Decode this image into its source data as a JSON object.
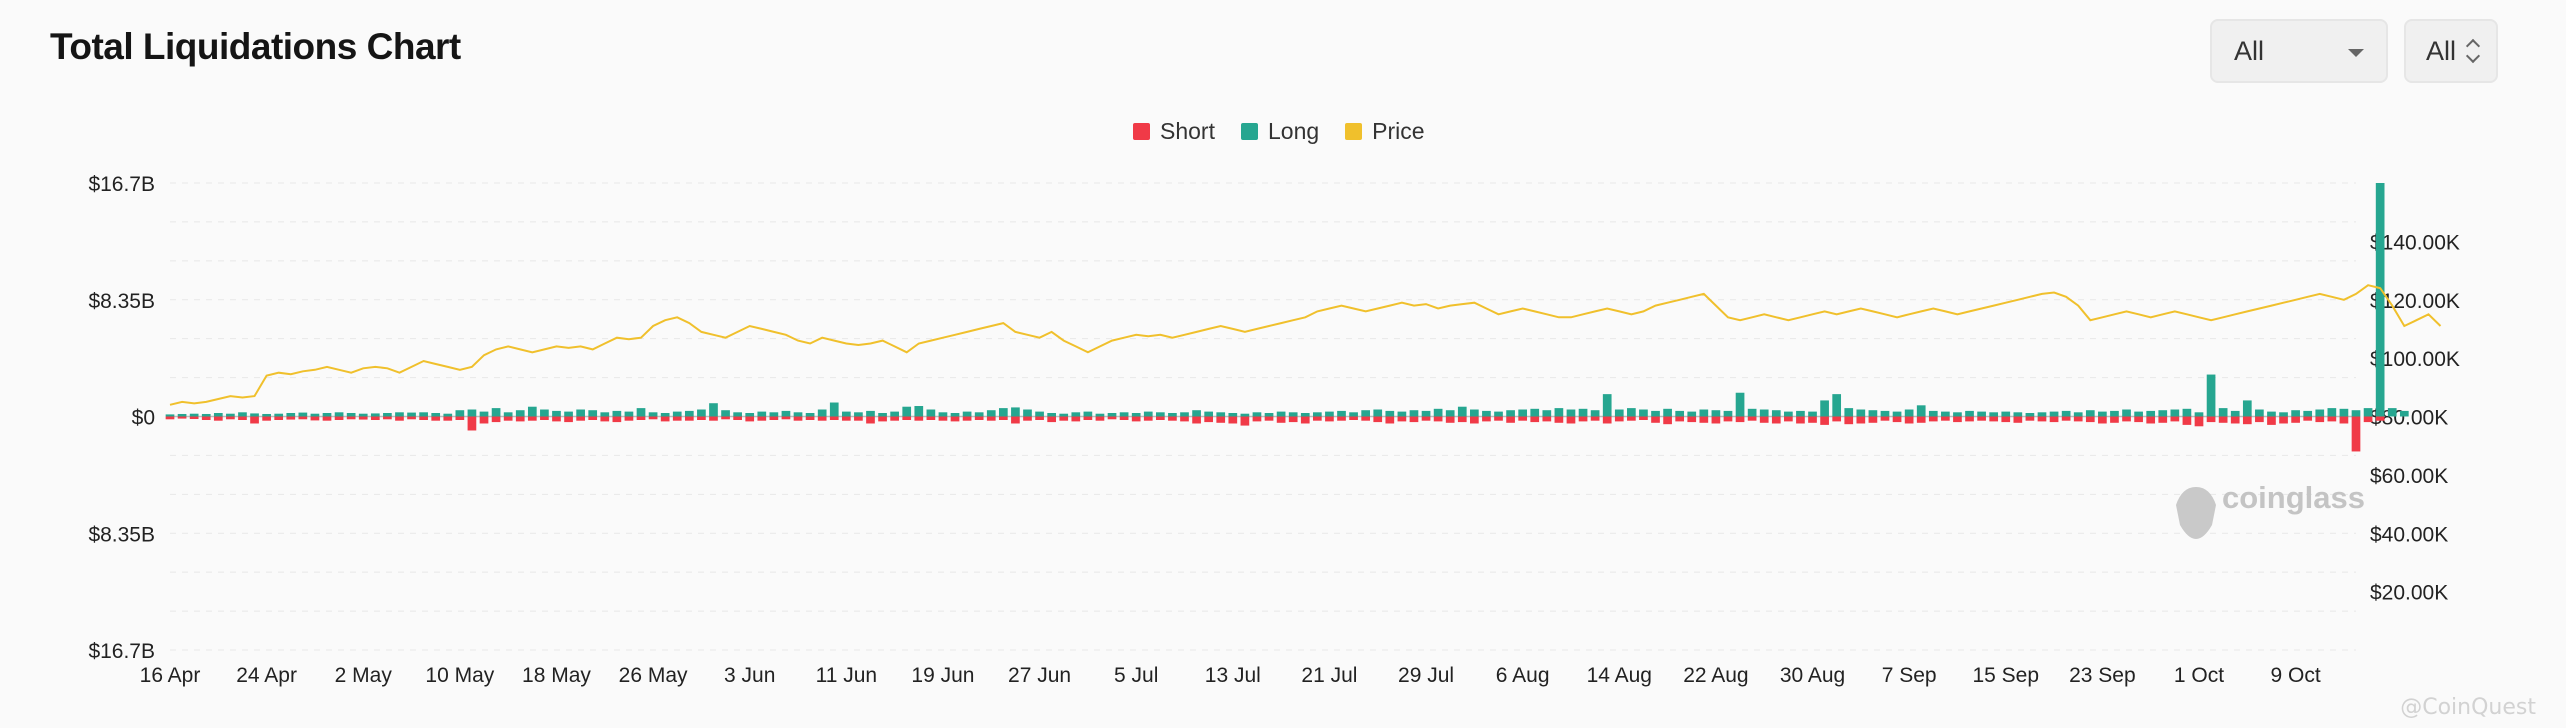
{
  "header": {
    "title": "Total Liquidations Chart",
    "range_select": "All",
    "unit_select": "All"
  },
  "watermark": "coinglass",
  "corner_mark": "@CoinQuest",
  "colors": {
    "short": "#f03a47",
    "long": "#26a690",
    "price": "#f0c02c",
    "grid": "#e8e8e8"
  },
  "chart_data": {
    "type": "bar",
    "title": "Total Liquidations Chart",
    "legend": [
      "Short",
      "Long",
      "Price"
    ],
    "legend_position": "top-center",
    "x_tick_labels": [
      "16 Apr",
      "24 Apr",
      "2 May",
      "10 May",
      "18 May",
      "26 May",
      "3 Jun",
      "11 Jun",
      "19 Jun",
      "27 Jun",
      "5 Jul",
      "13 Jul",
      "21 Jul",
      "29 Jul",
      "6 Aug",
      "14 Aug",
      "22 Aug",
      "30 Aug",
      "7 Sep",
      "15 Sep",
      "23 Sep",
      "1 Oct",
      "9 Oct"
    ],
    "left_axis": {
      "ticks": [
        "$16.7B",
        "$8.35B",
        "$0",
        "$8.35B",
        "$16.7B"
      ],
      "range": [
        -16.7,
        16.7
      ],
      "unit": "B USD"
    },
    "right_axis": {
      "ticks": [
        "$140.00K",
        "$120.00K",
        "$100.00K",
        "$80.00K",
        "$60.00K",
        "$40.00K",
        "$20.00K"
      ],
      "range": [
        0,
        160
      ],
      "unit": "K USD"
    },
    "grid": true,
    "start_date": "16 Apr",
    "day_count": 182,
    "series": [
      {
        "name": "Long",
        "unit": "B USD",
        "values": [
          0.15,
          0.18,
          0.2,
          0.18,
          0.25,
          0.2,
          0.3,
          0.22,
          0.18,
          0.2,
          0.25,
          0.28,
          0.2,
          0.25,
          0.3,
          0.25,
          0.2,
          0.22,
          0.25,
          0.3,
          0.28,
          0.3,
          0.25,
          0.2,
          0.45,
          0.5,
          0.35,
          0.6,
          0.3,
          0.45,
          0.7,
          0.5,
          0.4,
          0.35,
          0.5,
          0.45,
          0.3,
          0.4,
          0.35,
          0.6,
          0.3,
          0.25,
          0.35,
          0.4,
          0.5,
          0.95,
          0.45,
          0.3,
          0.25,
          0.35,
          0.3,
          0.4,
          0.3,
          0.25,
          0.5,
          1.0,
          0.35,
          0.3,
          0.4,
          0.25,
          0.35,
          0.7,
          0.75,
          0.5,
          0.3,
          0.25,
          0.35,
          0.3,
          0.45,
          0.6,
          0.65,
          0.5,
          0.35,
          0.25,
          0.2,
          0.3,
          0.35,
          0.2,
          0.25,
          0.3,
          0.25,
          0.35,
          0.3,
          0.25,
          0.3,
          0.45,
          0.35,
          0.3,
          0.25,
          0.2,
          0.3,
          0.25,
          0.35,
          0.3,
          0.25,
          0.3,
          0.35,
          0.4,
          0.3,
          0.45,
          0.5,
          0.4,
          0.35,
          0.45,
          0.4,
          0.55,
          0.45,
          0.7,
          0.5,
          0.4,
          0.35,
          0.45,
          0.5,
          0.55,
          0.45,
          0.6,
          0.5,
          0.55,
          0.45,
          1.6,
          0.5,
          0.6,
          0.5,
          0.4,
          0.55,
          0.4,
          0.35,
          0.5,
          0.45,
          0.4,
          1.7,
          0.55,
          0.5,
          0.45,
          0.35,
          0.4,
          0.35,
          1.15,
          1.6,
          0.6,
          0.5,
          0.45,
          0.4,
          0.35,
          0.5,
          0.8,
          0.4,
          0.35,
          0.3,
          0.4,
          0.35,
          0.3,
          0.35,
          0.3,
          0.25,
          0.3,
          0.35,
          0.4,
          0.3,
          0.45,
          0.35,
          0.4,
          0.5,
          0.35,
          0.4,
          0.45,
          0.5,
          0.55,
          0.3,
          3.0,
          0.6,
          0.4,
          1.15,
          0.5,
          0.35,
          0.3,
          0.45,
          0.4,
          0.5,
          0.6,
          0.55,
          0.45,
          0.6,
          16.7,
          0.6,
          0.4
        ]
      },
      {
        "name": "Short",
        "unit": "B USD",
        "values": [
          0.2,
          0.15,
          0.18,
          0.25,
          0.3,
          0.2,
          0.25,
          0.5,
          0.3,
          0.25,
          0.22,
          0.2,
          0.28,
          0.3,
          0.25,
          0.2,
          0.22,
          0.25,
          0.2,
          0.3,
          0.2,
          0.25,
          0.3,
          0.3,
          0.25,
          1.0,
          0.5,
          0.4,
          0.3,
          0.35,
          0.3,
          0.25,
          0.35,
          0.4,
          0.3,
          0.25,
          0.35,
          0.4,
          0.3,
          0.25,
          0.2,
          0.35,
          0.3,
          0.3,
          0.25,
          0.3,
          0.2,
          0.25,
          0.35,
          0.3,
          0.25,
          0.2,
          0.3,
          0.25,
          0.3,
          0.25,
          0.3,
          0.3,
          0.5,
          0.35,
          0.3,
          0.25,
          0.3,
          0.25,
          0.3,
          0.35,
          0.3,
          0.25,
          0.3,
          0.25,
          0.5,
          0.3,
          0.25,
          0.4,
          0.3,
          0.35,
          0.25,
          0.3,
          0.2,
          0.25,
          0.35,
          0.3,
          0.25,
          0.3,
          0.35,
          0.5,
          0.4,
          0.45,
          0.5,
          0.65,
          0.35,
          0.3,
          0.45,
          0.4,
          0.5,
          0.3,
          0.35,
          0.3,
          0.25,
          0.3,
          0.4,
          0.5,
          0.35,
          0.4,
          0.3,
          0.35,
          0.45,
          0.4,
          0.5,
          0.35,
          0.3,
          0.45,
          0.3,
          0.4,
          0.35,
          0.45,
          0.5,
          0.35,
          0.3,
          0.5,
          0.35,
          0.3,
          0.25,
          0.45,
          0.55,
          0.35,
          0.4,
          0.45,
          0.5,
          0.35,
          0.4,
          0.3,
          0.45,
          0.5,
          0.35,
          0.5,
          0.45,
          0.6,
          0.35,
          0.55,
          0.5,
          0.45,
          0.3,
          0.4,
          0.5,
          0.45,
          0.35,
          0.3,
          0.4,
          0.35,
          0.3,
          0.35,
          0.4,
          0.45,
          0.3,
          0.35,
          0.4,
          0.3,
          0.35,
          0.4,
          0.5,
          0.45,
          0.35,
          0.4,
          0.5,
          0.45,
          0.35,
          0.6,
          0.7,
          0.4,
          0.45,
          0.5,
          0.55,
          0.4,
          0.6,
          0.5,
          0.45,
          0.3,
          0.4,
          0.35,
          0.5,
          2.5,
          0.4,
          0.3
        ]
      },
      {
        "name": "Price",
        "unit": "K USD",
        "axis": "right",
        "values": [
          84,
          85,
          84.5,
          85,
          86,
          87,
          86.5,
          87,
          94,
          95,
          94.5,
          95.5,
          96,
          97,
          96,
          95,
          96.5,
          97,
          96.5,
          95,
          97,
          99,
          98,
          97,
          96,
          97,
          101,
          103,
          104,
          103,
          102,
          103,
          104,
          103.5,
          104,
          103,
          105,
          107,
          106.5,
          107,
          111,
          113,
          114,
          112,
          109,
          108,
          107,
          109,
          111,
          110,
          109,
          108,
          106,
          105,
          107,
          106,
          105,
          104.5,
          105,
          106,
          104,
          102,
          105,
          106,
          107,
          108,
          109,
          110,
          111,
          112,
          109,
          108,
          107,
          109,
          106,
          104,
          102,
          104,
          106,
          107,
          108,
          107.5,
          108,
          107,
          108,
          109,
          110,
          111,
          110,
          109,
          110,
          111,
          112,
          113,
          114,
          116,
          117,
          118,
          117,
          116,
          117,
          118,
          119,
          118,
          118.5,
          117,
          118,
          118.5,
          119,
          117,
          115,
          116,
          117,
          116,
          115,
          114,
          114,
          115,
          116,
          117,
          116,
          115,
          116,
          118,
          119,
          120,
          121,
          122,
          118,
          114,
          113,
          114,
          115,
          114,
          113,
          114,
          115,
          116,
          115,
          116,
          117,
          116,
          115,
          114,
          115,
          116,
          117,
          116,
          115,
          116,
          117,
          118,
          119,
          120,
          121,
          122,
          122.5,
          121,
          118,
          113,
          114,
          115,
          116,
          115,
          114,
          115,
          116,
          115,
          114,
          113,
          114,
          115,
          116,
          117,
          118,
          119,
          120,
          121,
          122,
          121,
          120,
          122,
          125,
          124,
          118,
          111,
          113,
          115,
          111
        ]
      }
    ]
  }
}
